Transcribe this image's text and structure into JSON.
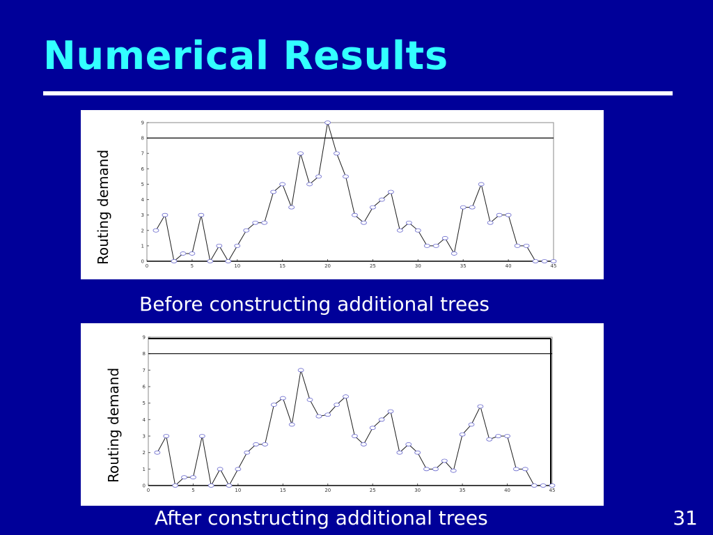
{
  "slide": {
    "title": "Numerical Results",
    "page_number": "31"
  },
  "chart_data": [
    {
      "type": "line",
      "caption": "Before constructing additional trees",
      "ylabel": "Routing demand",
      "xlim": [
        0,
        45
      ],
      "ylim": [
        0,
        9
      ],
      "xticks": [
        0,
        5,
        10,
        15,
        20,
        25,
        30,
        35,
        40,
        45
      ],
      "yticks": [
        0,
        1,
        2,
        3,
        4,
        5,
        6,
        7,
        8,
        9
      ],
      "threshold": 8,
      "x": [
        1,
        2,
        3,
        4,
        5,
        6,
        7,
        8,
        9,
        10,
        11,
        12,
        13,
        14,
        15,
        16,
        17,
        18,
        19,
        20,
        21,
        22,
        23,
        24,
        25,
        26,
        27,
        28,
        29,
        30,
        31,
        32,
        33,
        34,
        35,
        36,
        37,
        38,
        39,
        40,
        41,
        42,
        43,
        44,
        45
      ],
      "values": [
        2,
        3,
        0,
        0.5,
        0.5,
        3,
        0,
        1,
        0,
        1,
        2,
        2.5,
        2.5,
        4.5,
        5,
        3.5,
        7,
        5,
        5.5,
        9,
        7,
        5.5,
        3,
        2.5,
        3.5,
        4,
        4.5,
        2,
        2.5,
        2,
        1,
        1,
        1.5,
        0.5,
        3.5,
        3.5,
        5,
        2.5,
        3,
        3,
        1,
        1,
        0,
        0,
        0
      ],
      "color": "#1A1A1A"
    },
    {
      "type": "line",
      "caption": "After constructing additional trees",
      "ylabel": "Routing demand",
      "xlim": [
        0,
        45
      ],
      "ylim": [
        0,
        9
      ],
      "xticks": [
        0,
        5,
        10,
        15,
        20,
        25,
        30,
        35,
        40,
        45
      ],
      "yticks": [
        0,
        1,
        2,
        3,
        4,
        5,
        6,
        7,
        8,
        9
      ],
      "threshold": 8,
      "x": [
        1,
        2,
        3,
        4,
        5,
        6,
        7,
        8,
        9,
        10,
        11,
        12,
        13,
        14,
        15,
        16,
        17,
        18,
        19,
        20,
        21,
        22,
        23,
        24,
        25,
        26,
        27,
        28,
        29,
        30,
        31,
        32,
        33,
        34,
        35,
        36,
        37,
        38,
        39,
        40,
        41,
        42,
        43,
        44,
        45
      ],
      "values": [
        2,
        3,
        0,
        0.5,
        0.5,
        3,
        0,
        1,
        0,
        1,
        2,
        2.5,
        2.5,
        4.9,
        5.3,
        3.7,
        7,
        5.2,
        4.2,
        4.3,
        4.9,
        5.4,
        3,
        2.5,
        3.5,
        4,
        4.5,
        2,
        2.5,
        2,
        1,
        1,
        1.5,
        0.9,
        3.1,
        3.7,
        4.8,
        2.8,
        3,
        3,
        1,
        1,
        0,
        0,
        0
      ],
      "color": "#1A1A1A"
    }
  ]
}
